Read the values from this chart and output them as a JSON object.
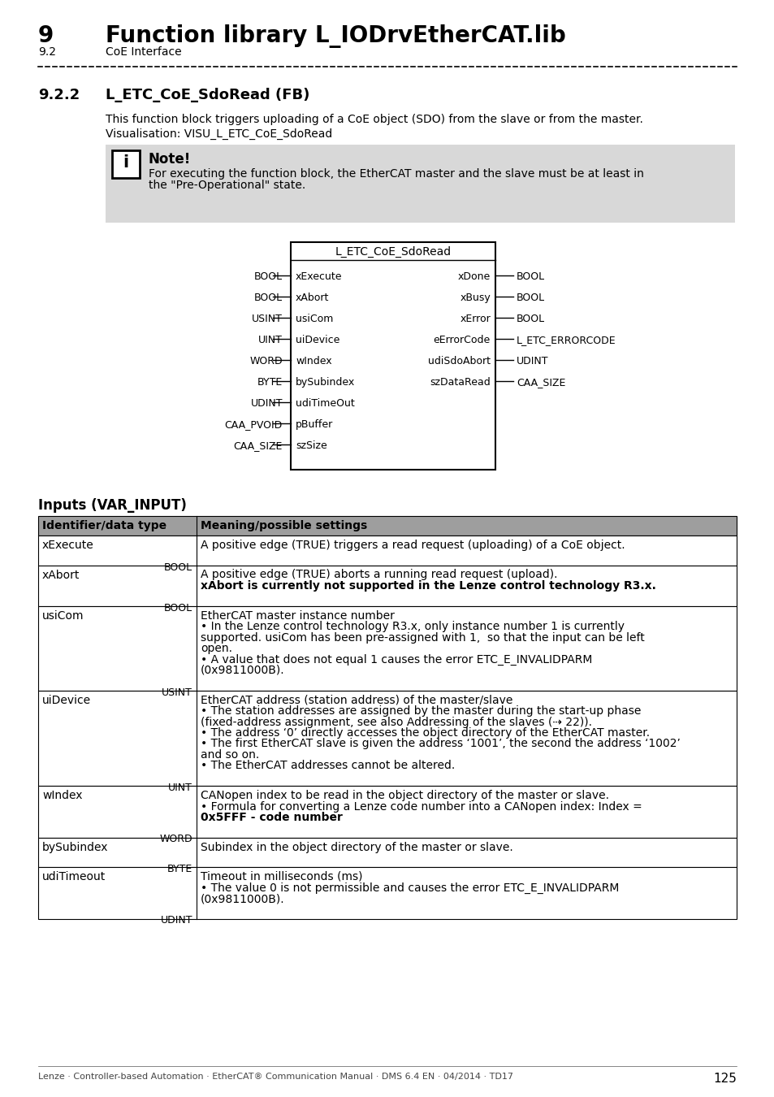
{
  "title_chapter": "9",
  "title_main": "Function library L_IODrvEtherCAT.lib",
  "subtitle_num": "9.2",
  "subtitle_text": "CoE Interface",
  "section_num": "9.2.2",
  "section_title": "L_ETC_CoE_SdoRead (FB)",
  "desc_line1": "This function block triggers uploading of a CoE object (SDO) from the slave or from the master.",
  "desc_line2": "Visualisation: VISU_L_ETC_CoE_SdoRead",
  "note_title": "Note!",
  "note_line1": "For executing the function block, the EtherCAT master and the slave must be at least in",
  "note_line2": "the \"Pre-Operational\" state.",
  "fb_title": "L_ETC_CoE_SdoRead",
  "inputs": [
    {
      "type": "BOOL",
      "name": "xExecute"
    },
    {
      "type": "BOOL",
      "name": "xAbort"
    },
    {
      "type": "USINT",
      "name": "usiCom"
    },
    {
      "type": "UINT",
      "name": "uiDevice"
    },
    {
      "type": "WORD",
      "name": "wIndex"
    },
    {
      "type": "BYTE",
      "name": "bySubindex"
    },
    {
      "type": "UDINT",
      "name": "udiTimeOut"
    },
    {
      "type": "CAA_PVOID",
      "name": "pBuffer"
    },
    {
      "type": "CAA_SIZE",
      "name": "szSize"
    }
  ],
  "outputs": [
    {
      "type": "BOOL",
      "name": "xDone"
    },
    {
      "type": "BOOL",
      "name": "xBusy"
    },
    {
      "type": "BOOL",
      "name": "xError"
    },
    {
      "type": "L_ETC_ERRORCODE",
      "name": "eErrorCode"
    },
    {
      "type": "UDINT",
      "name": "udiSdoAbort"
    },
    {
      "type": "CAA_SIZE",
      "name": "szDataRead"
    }
  ],
  "inputs_section_title": "Inputs (VAR_INPUT)",
  "table_header": [
    "Identifier/data type",
    "Meaning/possible settings"
  ],
  "table_rows": [
    {
      "id": "xExecute",
      "type": "BOOL",
      "meaning_lines": [
        [
          "normal",
          "A positive edge (TRUE) triggers a read request (uploading) of a CoE object."
        ]
      ]
    },
    {
      "id": "xAbort",
      "type": "BOOL",
      "meaning_lines": [
        [
          "normal",
          "A positive edge (TRUE) aborts a running read request (upload)."
        ],
        [
          "bold",
          "xAbort is currently not supported in the Lenze control technology R3.x."
        ]
      ]
    },
    {
      "id": "usiCom",
      "type": "USINT",
      "meaning_lines": [
        [
          "normal",
          "EtherCAT master instance number"
        ],
        [
          "normal",
          "• In the Lenze control technology R3.x, only instance number 1 is currently"
        ],
        [
          "normal",
          "supported. usiCom has been pre-assigned with 1,  so that the input can be left"
        ],
        [
          "normal",
          "open."
        ],
        [
          "normal",
          "• A value that does not equal 1 causes the error ETC_E_INVALIDPARM"
        ],
        [
          "normal",
          "(0x9811000B)."
        ]
      ]
    },
    {
      "id": "uiDevice",
      "type": "UINT",
      "meaning_lines": [
        [
          "normal",
          "EtherCAT address (station address) of the master/slave"
        ],
        [
          "normal",
          "• The station addresses are assigned by the master during the start-up phase"
        ],
        [
          "normal",
          "(fixed-address assignment, see also Addressing of the slaves (⇢ 22))."
        ],
        [
          "normal",
          "• The address ‘0’ directly accesses the object directory of the EtherCAT master."
        ],
        [
          "normal",
          "• The first EtherCAT slave is given the address ‘1001’, the second the address ‘1002’"
        ],
        [
          "normal",
          "and so on."
        ],
        [
          "normal",
          "• The EtherCAT addresses cannot be altered."
        ]
      ]
    },
    {
      "id": "wIndex",
      "type": "WORD",
      "meaning_lines": [
        [
          "normal",
          "CANopen index to be read in the object directory of the master or slave."
        ],
        [
          "normal",
          "• Formula for converting a Lenze code number into a CANopen index: Index ="
        ],
        [
          "bold",
          "0x5FFF - code number"
        ]
      ]
    },
    {
      "id": "bySubindex",
      "type": "BYTE",
      "meaning_lines": [
        [
          "normal",
          "Subindex in the object directory of the master or slave."
        ]
      ]
    },
    {
      "id": "udiTimeout",
      "type": "UDINT",
      "meaning_lines": [
        [
          "normal",
          "Timeout in milliseconds (ms)"
        ],
        [
          "normal",
          "• The value 0 is not permissible and causes the error ETC_E_INVALIDPARM"
        ],
        [
          "normal",
          "(0x9811000B)."
        ]
      ]
    }
  ],
  "footer_text": "Lenze · Controller-based Automation · EtherCAT® Communication Manual · DMS 6.4 EN · 04/2014 · TD17",
  "page_number": "125",
  "bg_color": "#ffffff",
  "note_bg": "#d8d8d8",
  "table_header_bg": "#9e9e9e",
  "border_color": "#000000"
}
